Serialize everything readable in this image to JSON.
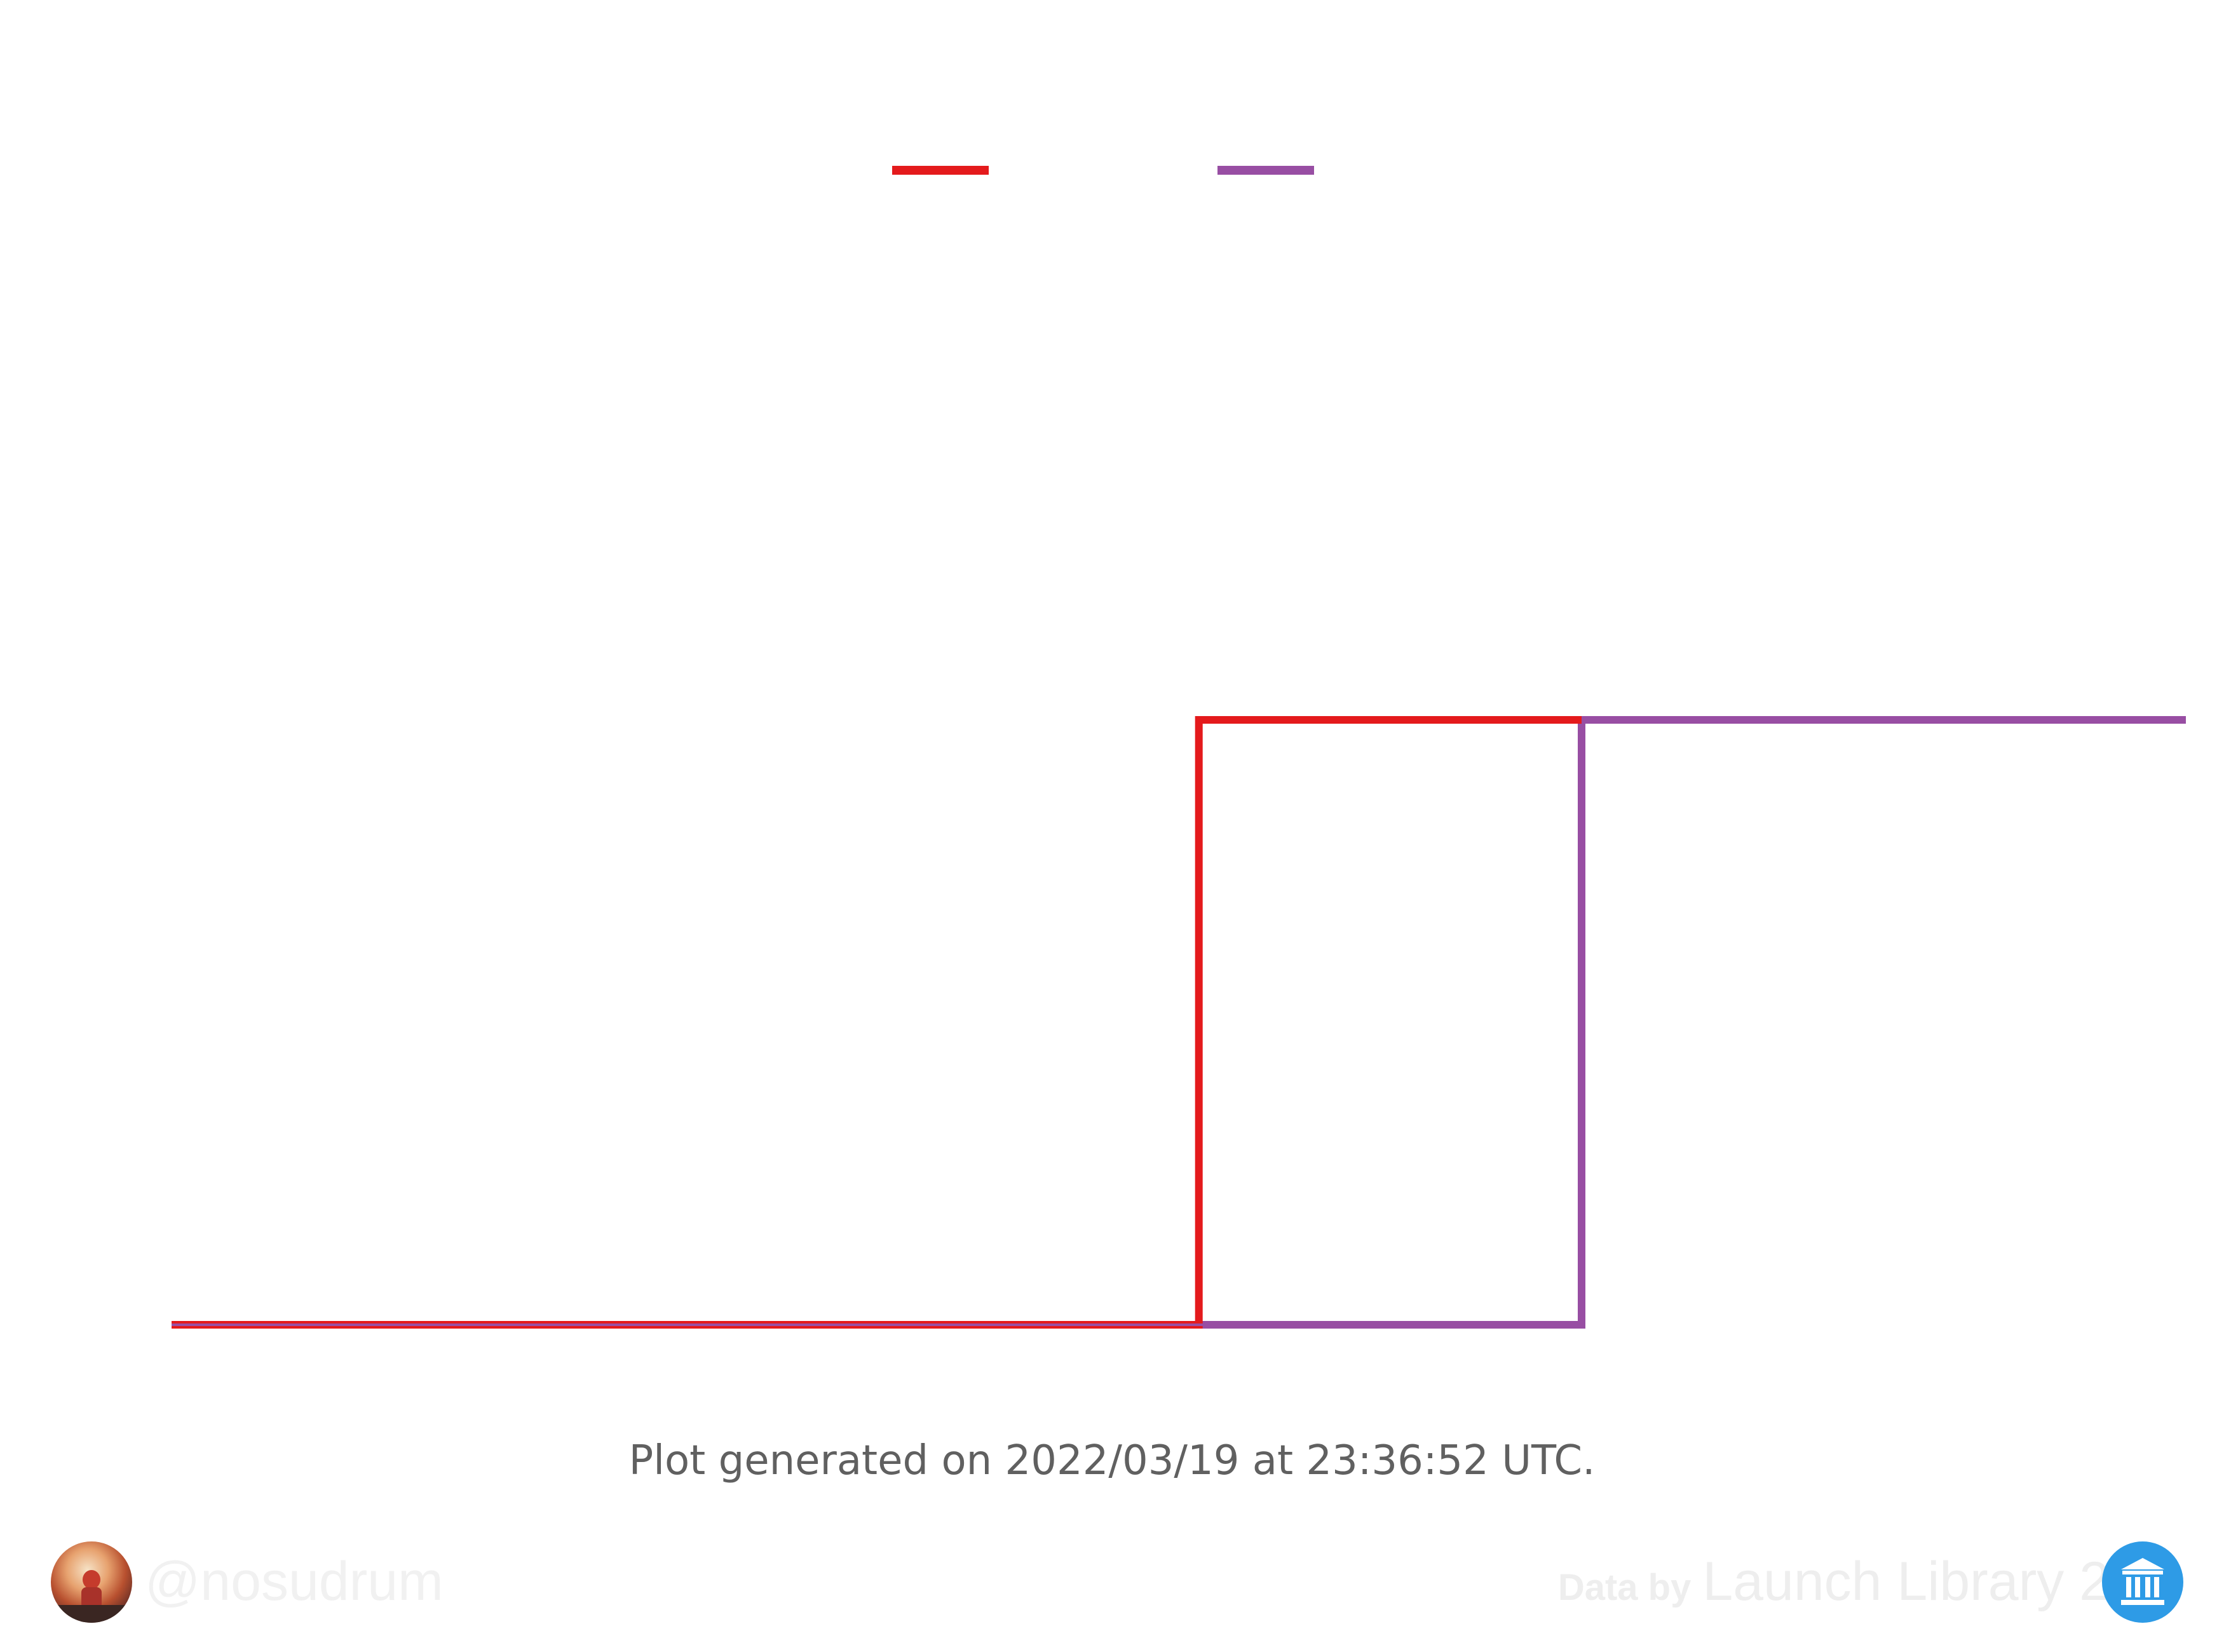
{
  "chart_data": {
    "type": "line",
    "step": true,
    "title": "",
    "xlabel": "",
    "ylabel": "",
    "series": [
      {
        "color": "#e41a1c",
        "points": [
          [
            0,
            0
          ],
          [
            0.51,
            0
          ],
          [
            0.51,
            1
          ],
          [
            0.7,
            1
          ]
        ]
      },
      {
        "color": "#984ea3",
        "points": [
          [
            0,
            0
          ],
          [
            0.7,
            0
          ],
          [
            0.7,
            1
          ],
          [
            1.0,
            1
          ]
        ]
      }
    ],
    "xlim": [
      0,
      1
    ],
    "ylim": [
      0,
      1
    ],
    "grid": false,
    "legend_position": "top-center"
  },
  "footer": {
    "generated_note": "Plot generated on 2022/03/19 at 23:36:52 UTC.",
    "author_handle": "@nosudrum",
    "credit_prefix": "Data by",
    "credit_name": "Launch Library 2"
  }
}
